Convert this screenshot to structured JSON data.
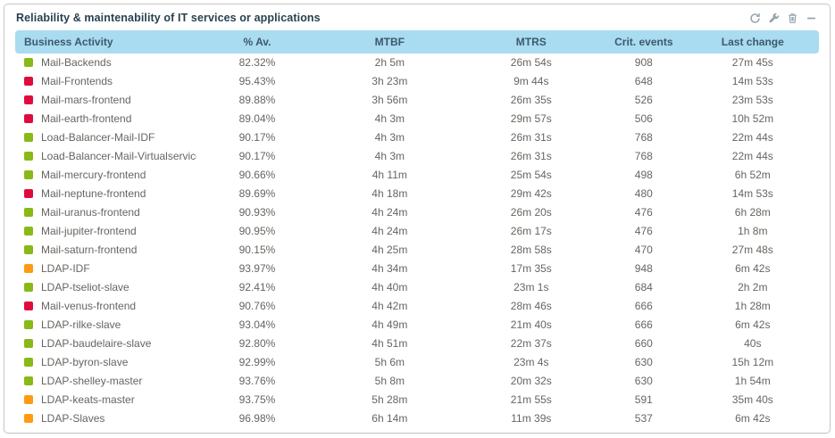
{
  "widget": {
    "title": "Reliability & maintenability of IT services or applications"
  },
  "status_colors": {
    "ok": "#88b917",
    "warning": "#ff9a13",
    "critical": "#e00b3d"
  },
  "table": {
    "columns": [
      {
        "label": "Business Activity"
      },
      {
        "label": "% Av."
      },
      {
        "label": "MTBF"
      },
      {
        "label": "MTRS"
      },
      {
        "label": "Crit. events"
      },
      {
        "label": "Last change"
      }
    ],
    "rows": [
      {
        "status": "ok",
        "activity": "Mail-Backends",
        "availability": "82.32%",
        "mtbf": "2h 5m",
        "mtrs": "26m 54s",
        "crit_events": "908",
        "last_change": "27m 45s"
      },
      {
        "status": "critical",
        "activity": "Mail-Frontends",
        "availability": "95.43%",
        "mtbf": "3h 23m",
        "mtrs": "9m 44s",
        "crit_events": "648",
        "last_change": "14m 53s"
      },
      {
        "status": "critical",
        "activity": "Mail-mars-frontend",
        "availability": "89.88%",
        "mtbf": "3h 56m",
        "mtrs": "26m 35s",
        "crit_events": "526",
        "last_change": "23m 53s"
      },
      {
        "status": "critical",
        "activity": "Mail-earth-frontend",
        "availability": "89.04%",
        "mtbf": "4h 3m",
        "mtrs": "29m 57s",
        "crit_events": "506",
        "last_change": "10h 52m"
      },
      {
        "status": "ok",
        "activity": "Load-Balancer-Mail-IDF",
        "availability": "90.17%",
        "mtbf": "4h 3m",
        "mtrs": "26m 31s",
        "crit_events": "768",
        "last_change": "22m 44s"
      },
      {
        "status": "ok",
        "activity": "Load-Balancer-Mail-Virtualservice",
        "availability": "90.17%",
        "mtbf": "4h 3m",
        "mtrs": "26m 31s",
        "crit_events": "768",
        "last_change": "22m 44s"
      },
      {
        "status": "ok",
        "activity": "Mail-mercury-frontend",
        "availability": "90.66%",
        "mtbf": "4h 11m",
        "mtrs": "25m 54s",
        "crit_events": "498",
        "last_change": "6h 52m"
      },
      {
        "status": "critical",
        "activity": "Mail-neptune-frontend",
        "availability": "89.69%",
        "mtbf": "4h 18m",
        "mtrs": "29m 42s",
        "crit_events": "480",
        "last_change": "14m 53s"
      },
      {
        "status": "ok",
        "activity": "Mail-uranus-frontend",
        "availability": "90.93%",
        "mtbf": "4h 24m",
        "mtrs": "26m 20s",
        "crit_events": "476",
        "last_change": "6h 28m"
      },
      {
        "status": "ok",
        "activity": "Mail-jupiter-frontend",
        "availability": "90.95%",
        "mtbf": "4h 24m",
        "mtrs": "26m 17s",
        "crit_events": "476",
        "last_change": "1h 8m"
      },
      {
        "status": "ok",
        "activity": "Mail-saturn-frontend",
        "availability": "90.15%",
        "mtbf": "4h 25m",
        "mtrs": "28m 58s",
        "crit_events": "470",
        "last_change": "27m 48s"
      },
      {
        "status": "warning",
        "activity": "LDAP-IDF",
        "availability": "93.97%",
        "mtbf": "4h 34m",
        "mtrs": "17m 35s",
        "crit_events": "948",
        "last_change": "6m 42s"
      },
      {
        "status": "ok",
        "activity": "LDAP-tseliot-slave",
        "availability": "92.41%",
        "mtbf": "4h 40m",
        "mtrs": "23m 1s",
        "crit_events": "684",
        "last_change": "2h 2m"
      },
      {
        "status": "critical",
        "activity": "Mail-venus-frontend",
        "availability": "90.76%",
        "mtbf": "4h 42m",
        "mtrs": "28m 46s",
        "crit_events": "666",
        "last_change": "1h 28m"
      },
      {
        "status": "ok",
        "activity": "LDAP-rilke-slave",
        "availability": "93.04%",
        "mtbf": "4h 49m",
        "mtrs": "21m 40s",
        "crit_events": "666",
        "last_change": "6m 42s"
      },
      {
        "status": "ok",
        "activity": "LDAP-baudelaire-slave",
        "availability": "92.80%",
        "mtbf": "4h 51m",
        "mtrs": "22m 37s",
        "crit_events": "660",
        "last_change": "40s"
      },
      {
        "status": "ok",
        "activity": "LDAP-byron-slave",
        "availability": "92.99%",
        "mtbf": "5h 6m",
        "mtrs": "23m 4s",
        "crit_events": "630",
        "last_change": "15h 12m"
      },
      {
        "status": "ok",
        "activity": "LDAP-shelley-master",
        "availability": "93.76%",
        "mtbf": "5h 8m",
        "mtrs": "20m 32s",
        "crit_events": "630",
        "last_change": "1h 54m"
      },
      {
        "status": "warning",
        "activity": "LDAP-keats-master",
        "availability": "93.75%",
        "mtbf": "5h 28m",
        "mtrs": "21m 55s",
        "crit_events": "591",
        "last_change": "35m 40s"
      },
      {
        "status": "warning",
        "activity": "LDAP-Slaves",
        "availability": "96.98%",
        "mtbf": "6h 14m",
        "mtrs": "11m 39s",
        "crit_events": "537",
        "last_change": "6m 42s"
      }
    ]
  }
}
